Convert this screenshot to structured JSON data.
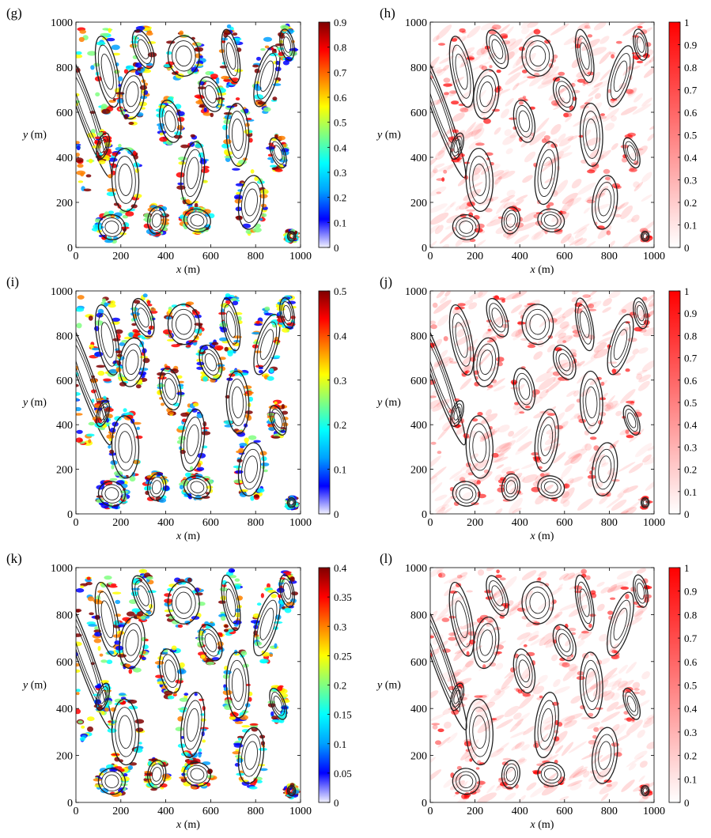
{
  "figure": {
    "axis_x_label": "x",
    "axis_y_label": "y",
    "axis_unit": "(m)"
  },
  "colormaps": {
    "jet": [
      "#f2f2ff",
      "#0000ff",
      "#00a0ff",
      "#00ffff",
      "#80ff80",
      "#ffff00",
      "#ff8000",
      "#ff0000",
      "#800000"
    ],
    "reds": [
      "#ffffff",
      "#ff0000"
    ]
  },
  "chart_data": [
    {
      "panel": "(g)",
      "type": "heatmap",
      "colormap": "jet",
      "xlim": [
        0,
        1000
      ],
      "ylim": [
        0,
        1000
      ],
      "x_ticks": [
        0,
        200,
        400,
        600,
        800,
        1000
      ],
      "y_ticks": [
        0,
        200,
        400,
        600,
        800,
        1000
      ],
      "xlabel": "x (m)",
      "ylabel": "y (m)",
      "colorbar": {
        "min": 0,
        "max": 0.9,
        "ticks": [
          "0",
          "0.1",
          "0.2",
          "0.3",
          "0.4",
          "0.5",
          "0.6",
          "0.7",
          "0.8",
          "0.9"
        ]
      }
    },
    {
      "panel": "(h)",
      "type": "heatmap",
      "colormap": "reds",
      "xlim": [
        0,
        1000
      ],
      "ylim": [
        0,
        1000
      ],
      "x_ticks": [
        0,
        200,
        400,
        600,
        800,
        1000
      ],
      "y_ticks": [
        0,
        200,
        400,
        600,
        800,
        1000
      ],
      "xlabel": "x (m)",
      "ylabel": "y (m)",
      "colorbar": {
        "min": 0,
        "max": 1,
        "ticks": [
          "0",
          "0.1",
          "0.2",
          "0.3",
          "0.4",
          "0.5",
          "0.6",
          "0.7",
          "0.8",
          "0.9",
          "1"
        ]
      }
    },
    {
      "panel": "(i)",
      "type": "heatmap",
      "colormap": "jet",
      "xlim": [
        0,
        1000
      ],
      "ylim": [
        0,
        1000
      ],
      "x_ticks": [
        0,
        200,
        400,
        600,
        800,
        1000
      ],
      "y_ticks": [
        0,
        200,
        400,
        600,
        800,
        1000
      ],
      "xlabel": "x (m)",
      "ylabel": "y (m)",
      "colorbar": {
        "min": 0,
        "max": 0.5,
        "ticks": [
          "0",
          "0.1",
          "0.2",
          "0.3",
          "0.4",
          "0.5"
        ]
      }
    },
    {
      "panel": "(j)",
      "type": "heatmap",
      "colormap": "reds",
      "xlim": [
        0,
        1000
      ],
      "ylim": [
        0,
        1000
      ],
      "x_ticks": [
        0,
        200,
        400,
        600,
        800,
        1000
      ],
      "y_ticks": [
        0,
        200,
        400,
        600,
        800,
        1000
      ],
      "xlabel": "x (m)",
      "ylabel": "y (m)",
      "colorbar": {
        "min": 0,
        "max": 1,
        "ticks": [
          "0",
          "0.1",
          "0.2",
          "0.3",
          "0.4",
          "0.5",
          "0.6",
          "0.7",
          "0.8",
          "0.9",
          "1"
        ]
      }
    },
    {
      "panel": "(k)",
      "type": "heatmap",
      "colormap": "jet",
      "xlim": [
        0,
        1000
      ],
      "ylim": [
        0,
        1000
      ],
      "x_ticks": [
        0,
        200,
        400,
        600,
        800,
        1000
      ],
      "y_ticks": [
        0,
        200,
        400,
        600,
        800,
        1000
      ],
      "xlabel": "x (m)",
      "ylabel": "y (m)",
      "colorbar": {
        "min": 0,
        "max": 0.4,
        "ticks": [
          "0",
          "0.05",
          "0.1",
          "0.15",
          "0.2",
          "0.25",
          "0.3",
          "0.35",
          "0.4"
        ]
      }
    },
    {
      "panel": "(l)",
      "type": "heatmap",
      "colormap": "reds",
      "xlim": [
        0,
        1000
      ],
      "ylim": [
        0,
        1000
      ],
      "x_ticks": [
        0,
        200,
        400,
        600,
        800,
        1000
      ],
      "y_ticks": [
        0,
        200,
        400,
        600,
        800,
        1000
      ],
      "xlabel": "x (m)",
      "ylabel": "y (m)",
      "colorbar": {
        "min": 0,
        "max": 1,
        "ticks": [
          "0",
          "0.1",
          "0.2",
          "0.3",
          "0.4",
          "0.5",
          "0.6",
          "0.7",
          "0.8",
          "0.9",
          "1"
        ]
      }
    }
  ]
}
